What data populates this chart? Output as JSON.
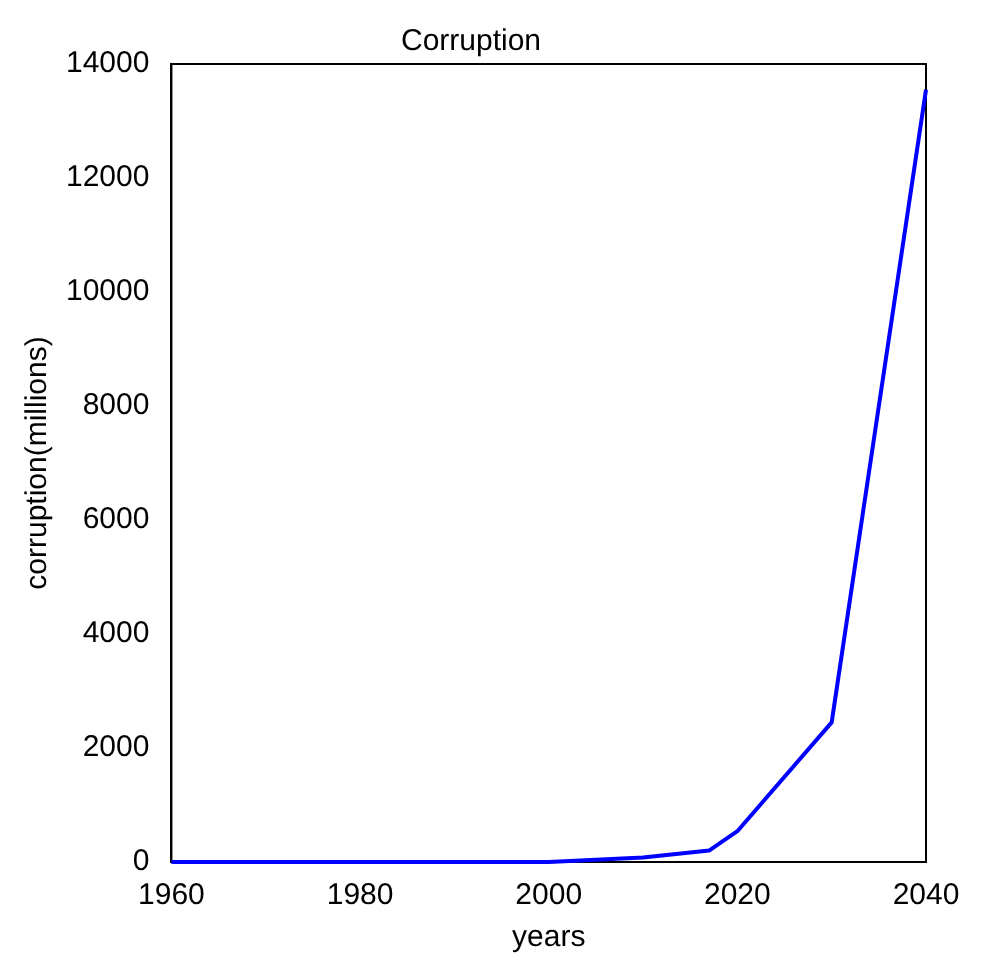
{
  "chart_data": {
    "type": "line",
    "title": "Corruption",
    "xlabel": "years",
    "ylabel": "corruption(millions)",
    "series": [
      {
        "color": "#0000ff",
        "x": [
          1960,
          1980,
          2000,
          2010,
          2017,
          2020,
          2030,
          2040
        ],
        "values": [
          0,
          0,
          0,
          80,
          200,
          540,
          2450,
          13550
        ]
      }
    ],
    "xlim": [
      1960,
      2040
    ],
    "xticks": [
      1960,
      1980,
      2000,
      2020,
      2040
    ],
    "ylim": [
      0,
      14000
    ],
    "yticks": [
      0,
      2000,
      4000,
      6000,
      8000,
      10000,
      12000,
      14000
    ],
    "grid": false,
    "legend": false
  }
}
